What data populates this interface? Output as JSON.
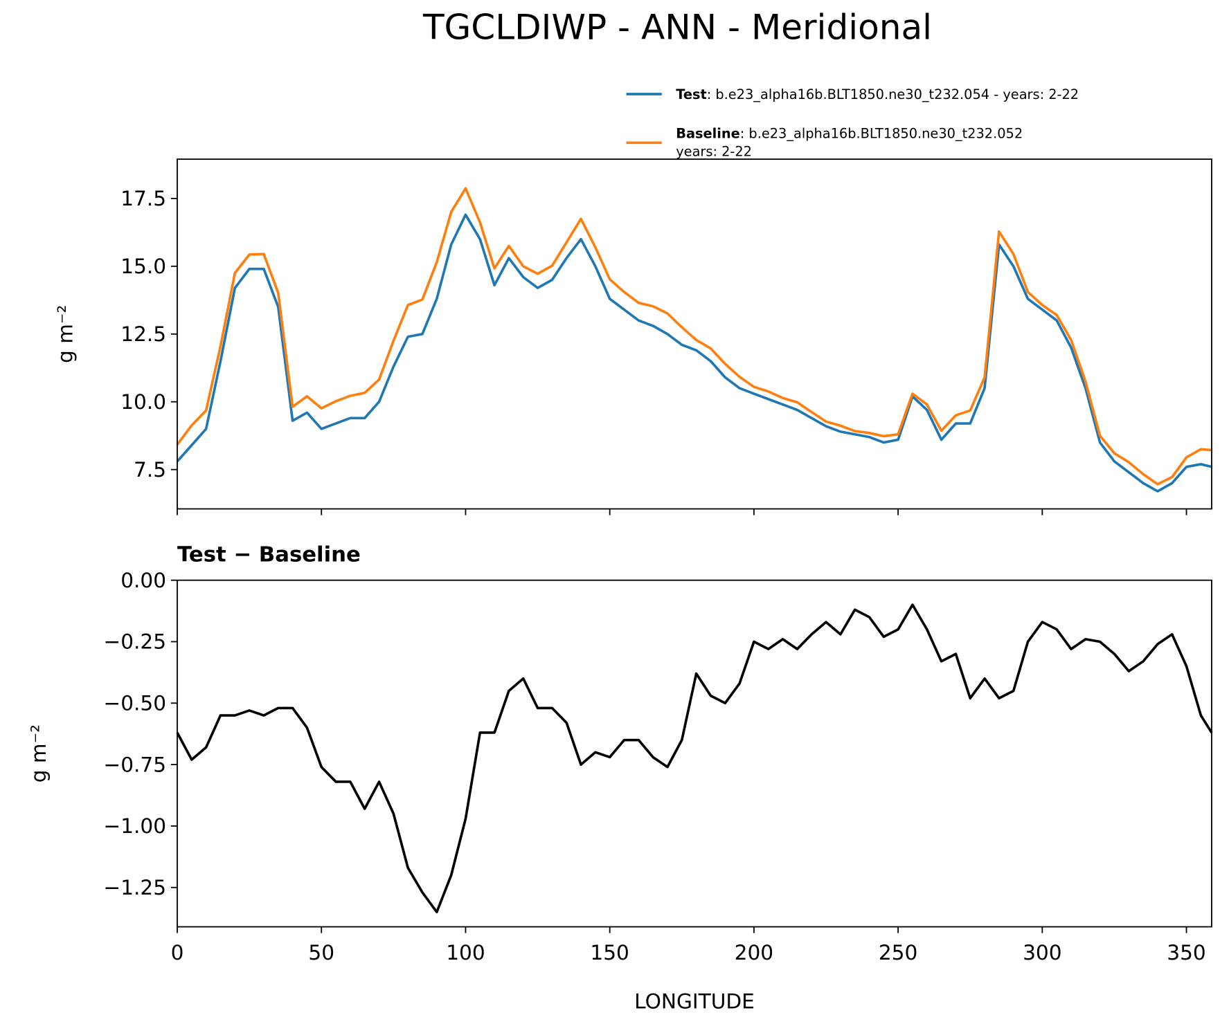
{
  "chart_data": [
    {
      "type": "line",
      "title": "TGCLDIWP - ANN - Meridional",
      "ylabel": "g m⁻²",
      "x": [
        0,
        5,
        10,
        15,
        20,
        25,
        30,
        35,
        40,
        45,
        50,
        55,
        60,
        65,
        70,
        75,
        80,
        85,
        90,
        95,
        100,
        105,
        110,
        115,
        120,
        125,
        130,
        135,
        140,
        145,
        150,
        155,
        160,
        165,
        170,
        175,
        180,
        185,
        190,
        195,
        200,
        205,
        210,
        215,
        220,
        225,
        230,
        235,
        240,
        245,
        250,
        255,
        260,
        265,
        270,
        275,
        280,
        285,
        290,
        295,
        300,
        305,
        310,
        315,
        320,
        325,
        330,
        335,
        340,
        345,
        350,
        355,
        358.75
      ],
      "series": [
        {
          "name": "Test",
          "label": ": b.e23_alpha16b.BLT1850.ne30_t232.054 - years: 2-22",
          "color": "#1f77b4",
          "values": [
            7.8,
            8.4,
            9.0,
            11.5,
            14.2,
            14.9,
            14.9,
            13.5,
            9.3,
            9.6,
            9.0,
            9.2,
            9.4,
            9.4,
            10.0,
            11.3,
            12.4,
            12.5,
            13.8,
            15.8,
            16.9,
            16.0,
            14.3,
            15.3,
            14.6,
            14.2,
            14.5,
            15.3,
            16.0,
            15.0,
            13.8,
            13.4,
            13.0,
            12.8,
            12.5,
            12.1,
            11.9,
            11.5,
            10.9,
            10.5,
            10.3,
            10.1,
            9.9,
            9.7,
            9.4,
            9.1,
            8.9,
            8.8,
            8.7,
            8.5,
            8.6,
            10.2,
            9.7,
            8.6,
            9.2,
            9.2,
            10.5,
            15.8,
            15.0,
            13.8,
            13.4,
            13.0,
            12.0,
            10.5,
            8.5,
            7.8,
            7.4,
            7.0,
            6.7,
            7.0,
            7.6,
            7.7,
            7.6
          ]
        },
        {
          "name": "Baseline",
          "label": ": b.e23_alpha16b.BLT1850.ne30_t232.052",
          "label2": "years: 2-22",
          "color": "#ff7f0e",
          "values": [
            8.42,
            9.13,
            9.68,
            12.05,
            14.75,
            15.43,
            15.45,
            14.02,
            9.82,
            10.2,
            9.76,
            10.02,
            10.22,
            10.33,
            10.82,
            12.25,
            13.57,
            13.77,
            15.15,
            17.0,
            17.87,
            16.62,
            14.92,
            15.75,
            15.0,
            14.72,
            15.02,
            15.88,
            16.75,
            15.7,
            14.52,
            14.05,
            13.65,
            13.52,
            13.26,
            12.75,
            12.28,
            11.97,
            11.4,
            10.92,
            10.55,
            10.38,
            10.14,
            9.98,
            9.62,
            9.27,
            9.12,
            8.92,
            8.85,
            8.73,
            8.8,
            10.3,
            9.9,
            8.93,
            9.5,
            9.68,
            10.9,
            16.28,
            15.45,
            14.05,
            13.57,
            13.2,
            12.28,
            10.74,
            8.75,
            8.1,
            7.77,
            7.33,
            6.96,
            7.22,
            7.95,
            8.25,
            8.22
          ]
        }
      ],
      "xlim": [
        0,
        358.75
      ],
      "xticks": [
        0,
        50,
        100,
        150,
        200,
        250,
        300,
        350
      ],
      "ylim": [
        6.05,
        18.95
      ],
      "yticks": [
        7.5,
        {
          "value": 10,
          "label": "10.0"
        },
        12.5,
        {
          "value": 15,
          "label": "15.0"
        },
        17.5
      ]
    },
    {
      "type": "line",
      "title": "Test − Baseline",
      "ylabel": "g m⁻²",
      "xlabel": "LONGITUDE",
      "x": [
        0,
        5,
        10,
        15,
        20,
        25,
        30,
        35,
        40,
        45,
        50,
        55,
        60,
        65,
        70,
        75,
        80,
        85,
        90,
        95,
        100,
        105,
        110,
        115,
        120,
        125,
        130,
        135,
        140,
        145,
        150,
        155,
        160,
        165,
        170,
        175,
        180,
        185,
        190,
        195,
        200,
        205,
        210,
        215,
        220,
        225,
        230,
        235,
        240,
        245,
        250,
        255,
        260,
        265,
        270,
        275,
        280,
        285,
        290,
        295,
        300,
        305,
        310,
        315,
        320,
        325,
        330,
        335,
        340,
        345,
        350,
        355,
        358.75
      ],
      "series": [
        {
          "color": "#000000",
          "values": [
            -0.62,
            -0.73,
            -0.68,
            -0.55,
            -0.55,
            -0.53,
            -0.55,
            -0.52,
            -0.52,
            -0.6,
            -0.76,
            -0.82,
            -0.82,
            -0.93,
            -0.82,
            -0.95,
            -1.17,
            -1.27,
            -1.35,
            -1.2,
            -0.97,
            -0.62,
            -0.62,
            -0.45,
            -0.4,
            -0.52,
            -0.52,
            -0.58,
            -0.75,
            -0.7,
            -0.72,
            -0.65,
            -0.65,
            -0.72,
            -0.76,
            -0.65,
            -0.38,
            -0.47,
            -0.5,
            -0.42,
            -0.25,
            -0.28,
            -0.24,
            -0.28,
            -0.22,
            -0.17,
            -0.22,
            -0.12,
            -0.15,
            -0.23,
            -0.2,
            -0.1,
            -0.2,
            -0.33,
            -0.3,
            -0.48,
            -0.4,
            -0.48,
            -0.45,
            -0.25,
            -0.17,
            -0.2,
            -0.28,
            -0.24,
            -0.25,
            -0.3,
            -0.37,
            -0.33,
            -0.26,
            -0.22,
            -0.35,
            -0.55,
            -0.62
          ]
        }
      ],
      "xlim": [
        0,
        358.75
      ],
      "xticks": [
        0,
        50,
        100,
        150,
        200,
        250,
        300,
        350
      ],
      "ylim": [
        -1.41,
        0
      ],
      "yticks": [
        {
          "value": -1.25,
          "label": "−1.25"
        },
        {
          "value": -1,
          "label": "−1.00"
        },
        {
          "value": -0.75,
          "label": "−0.75"
        },
        {
          "value": -0.5,
          "label": "−0.50"
        },
        {
          "value": -0.25,
          "label": "−0.25"
        },
        {
          "value": 0,
          "label": "0.00"
        }
      ]
    }
  ]
}
